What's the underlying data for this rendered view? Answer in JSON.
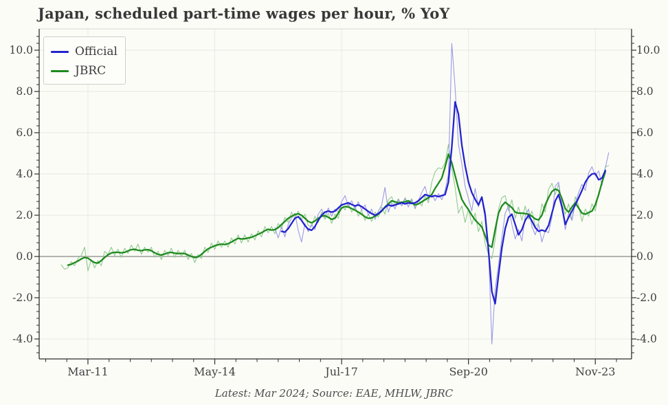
{
  "chart_data": {
    "type": "line",
    "title": "Japan, scheduled part-time wages per hour, % YoY",
    "footnote": "Latest: Mar 2024; Source: EAE, MHLW, JBRC",
    "x_axis": {
      "unit": "month",
      "start": "Jul-2010",
      "end": "Mar-2024",
      "tick_labels": [
        "Mar-11",
        "May-14",
        "Jul-17",
        "Sep-20",
        "Nov-23"
      ],
      "tick_month_indices": [
        8,
        46,
        84,
        122,
        160
      ]
    },
    "y_axis": {
      "tick_labels": [
        "10.0",
        "8.0",
        "6.0",
        "4.0",
        "2.0",
        "0.0",
        "-2.0",
        "-4.0"
      ],
      "tick_values": [
        10,
        8,
        6,
        4,
        2,
        0,
        -2,
        -4
      ],
      "range": [
        -4.97,
        11.03
      ],
      "zero_line": true,
      "grid": true
    },
    "legend": {
      "position": "upper-left",
      "entries": [
        {
          "label": "Official",
          "color": "#2323cf"
        },
        {
          "label": "JBRC",
          "color": "#1e8a1e"
        }
      ]
    },
    "series": [
      {
        "id": "jbrc-monthly",
        "name": "JBRC raw (thin line, unlabeled)",
        "color": "#8ecb8e",
        "width": 1.1,
        "start_month_index": 0,
        "values": [
          -0.4,
          -0.62,
          -0.55,
          -0.25,
          -0.45,
          -0.1,
          0.05,
          0.45,
          -0.7,
          -0.15,
          -0.55,
          -0.2,
          -0.45,
          0.25,
          0.1,
          0.45,
          0.05,
          0.35,
          -0.05,
          0.4,
          0.15,
          0.55,
          0.25,
          0.6,
          0.1,
          0.45,
          0.2,
          0.45,
          -0.05,
          0.25,
          -0.15,
          0.3,
          0.05,
          0.4,
          -0.05,
          0.3,
          0.0,
          0.3,
          -0.15,
          0.15,
          -0.3,
          0.1,
          -0.1,
          0.45,
          0.2,
          0.65,
          0.35,
          0.75,
          0.45,
          0.75,
          0.45,
          0.9,
          0.6,
          1.05,
          0.65,
          1.05,
          0.7,
          1.1,
          0.8,
          1.25,
          0.95,
          1.45,
          1.15,
          1.45,
          1.1,
          1.6,
          1.35,
          1.9,
          1.65,
          2.15,
          1.85,
          2.2,
          1.8,
          2.05,
          1.5,
          1.45,
          1.95,
          1.65,
          2.15,
          1.8,
          2.1,
          1.6,
          2.05,
          1.85,
          2.55,
          2.25,
          2.6,
          2.15,
          2.45,
          1.95,
          2.25,
          1.75,
          2.05,
          1.7,
          2.15,
          1.9,
          2.4,
          2.05,
          2.75,
          2.9,
          2.45,
          2.8,
          2.45,
          2.85,
          2.55,
          2.8,
          2.3,
          2.75,
          2.45,
          2.95,
          2.6,
          3.6,
          4.1,
          4.3,
          4.25,
          4.55,
          5.43,
          4.25,
          3.35,
          2.1,
          2.45,
          1.65,
          2.3,
          1.55,
          2.1,
          1.2,
          1.7,
          0.6,
          0.1,
          -0.1,
          0.8,
          2.3,
          2.85,
          2.95,
          2.2,
          2.75,
          1.85,
          2.4,
          1.75,
          2.45,
          1.8,
          2.2,
          1.45,
          1.6,
          2.55,
          2.15,
          3.25,
          3.55,
          3.0,
          3.5,
          2.55,
          2.05,
          2.55,
          1.75,
          2.9,
          2.45,
          1.7,
          2.3,
          1.95,
          2.55,
          2.2,
          3.1,
          3.5,
          4.35,
          4.4
        ]
      },
      {
        "id": "official-monthly",
        "name": "Official raw (thin line, unlabeled)",
        "color": "#9a9ae6",
        "width": 1.1,
        "start_month_index": 64,
        "values": [
          1.4,
          0.9,
          1.45,
          0.95,
          1.55,
          1.85,
          2.1,
          1.25,
          0.7,
          1.6,
          1.2,
          1.55,
          1.3,
          2.05,
          2.3,
          1.9,
          2.35,
          1.95,
          2.3,
          2.15,
          2.65,
          2.95,
          2.45,
          2.7,
          2.3,
          2.65,
          2.25,
          2.5,
          2.0,
          2.3,
          1.8,
          2.2,
          2.5,
          3.35,
          2.15,
          2.6,
          2.3,
          2.75,
          2.45,
          2.8,
          2.4,
          2.75,
          2.35,
          2.7,
          3.1,
          3.4,
          2.75,
          3.05,
          2.7,
          3.05,
          2.75,
          3.2,
          4.0,
          10.33,
          8.2,
          5.43,
          4.5,
          3.4,
          2.8,
          2.2,
          3.3,
          2.4,
          2.9,
          2.2,
          0.4,
          -4.25,
          -1.6,
          -0.4,
          0.9,
          2.1,
          2.45,
          1.55,
          0.85,
          1.3,
          0.75,
          1.95,
          2.3,
          1.45,
          1.05,
          1.55,
          0.7,
          1.25,
          1.15,
          1.9,
          3.4,
          3.6,
          2.5,
          1.3,
          2.1,
          1.75,
          2.6,
          3.1,
          3.5,
          3.2,
          4.05,
          4.35,
          3.9,
          4.15,
          3.45,
          4.3,
          5.03
        ]
      },
      {
        "id": "jbrc",
        "name": "JBRC",
        "color": "#1e8a1e",
        "width": 2.3,
        "start_month_index": 2,
        "values": [
          -0.42,
          -0.38,
          -0.3,
          -0.22,
          -0.12,
          -0.05,
          -0.08,
          -0.2,
          -0.3,
          -0.32,
          -0.2,
          -0.05,
          0.08,
          0.17,
          0.2,
          0.2,
          0.18,
          0.2,
          0.27,
          0.33,
          0.35,
          0.3,
          0.28,
          0.32,
          0.33,
          0.28,
          0.18,
          0.1,
          0.07,
          0.12,
          0.18,
          0.2,
          0.16,
          0.14,
          0.15,
          0.14,
          0.07,
          0.0,
          -0.05,
          -0.02,
          0.1,
          0.25,
          0.37,
          0.45,
          0.52,
          0.57,
          0.6,
          0.58,
          0.62,
          0.7,
          0.8,
          0.88,
          0.85,
          0.86,
          0.9,
          0.93,
          1.0,
          1.08,
          1.15,
          1.25,
          1.32,
          1.28,
          1.3,
          1.4,
          1.55,
          1.7,
          1.85,
          1.95,
          2.03,
          2.07,
          2.0,
          1.85,
          1.7,
          1.63,
          1.72,
          1.85,
          1.95,
          1.98,
          1.9,
          1.8,
          1.85,
          2.1,
          2.35,
          2.42,
          2.4,
          2.32,
          2.25,
          2.15,
          2.05,
          1.92,
          1.85,
          1.87,
          1.95,
          2.05,
          2.2,
          2.4,
          2.55,
          2.7,
          2.65,
          2.6,
          2.63,
          2.65,
          2.7,
          2.6,
          2.5,
          2.55,
          2.65,
          2.75,
          2.85,
          3.0,
          3.3,
          3.55,
          3.8,
          4.35,
          4.96,
          4.55,
          3.93,
          3.3,
          2.77,
          2.5,
          2.27,
          2.0,
          1.77,
          1.6,
          1.43,
          1.0,
          0.55,
          0.45,
          1.3,
          2.1,
          2.45,
          2.63,
          2.5,
          2.37,
          2.15,
          2.1,
          2.1,
          2.08,
          2.05,
          1.95,
          1.82,
          1.77,
          2.0,
          2.5,
          2.85,
          3.15,
          3.27,
          3.2,
          2.8,
          2.32,
          2.15,
          2.4,
          2.6,
          2.35,
          2.1,
          2.05,
          2.13,
          2.2,
          2.5,
          3.0,
          3.6,
          4.1
        ]
      },
      {
        "id": "official",
        "name": "Official",
        "color": "#2323cf",
        "width": 2.3,
        "start_month_index": 66,
        "values": [
          1.22,
          1.18,
          1.35,
          1.6,
          1.85,
          1.93,
          1.75,
          1.5,
          1.32,
          1.27,
          1.45,
          1.75,
          2.0,
          2.15,
          2.2,
          2.15,
          2.2,
          2.35,
          2.5,
          2.55,
          2.6,
          2.52,
          2.45,
          2.5,
          2.42,
          2.3,
          2.18,
          2.08,
          2.0,
          2.08,
          2.22,
          2.38,
          2.5,
          2.45,
          2.5,
          2.55,
          2.6,
          2.55,
          2.6,
          2.57,
          2.6,
          2.7,
          2.85,
          3.0,
          2.95,
          2.9,
          2.95,
          2.9,
          2.95,
          3.0,
          3.6,
          5.3,
          7.49,
          6.9,
          5.4,
          4.4,
          3.6,
          3.1,
          2.77,
          2.5,
          2.88,
          2.0,
          0.3,
          -1.7,
          -2.29,
          -0.9,
          0.4,
          1.35,
          1.9,
          2.05,
          1.55,
          1.05,
          1.3,
          1.75,
          2.0,
          1.72,
          1.4,
          1.22,
          1.28,
          1.22,
          1.5,
          2.1,
          2.7,
          3.0,
          2.4,
          1.55,
          1.9,
          2.2,
          2.5,
          2.85,
          3.2,
          3.6,
          3.85,
          4.0,
          4.02,
          3.72,
          3.8,
          4.17
        ]
      }
    ]
  }
}
